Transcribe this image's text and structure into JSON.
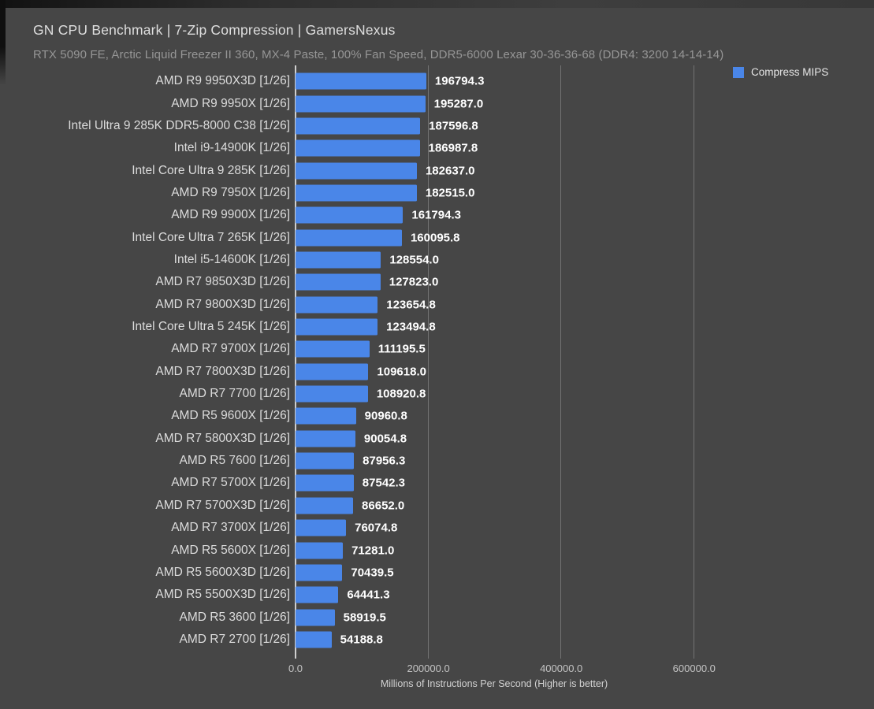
{
  "header": {
    "title": "GN CPU Benchmark | 7-Zip Compression | GamersNexus",
    "subtitle": "RTX 5090 FE, Arctic Liquid Freezer II 360, MX-4 Paste, 100% Fan Speed, DDR5-6000 Lexar 30-36-36-68 (DDR4: 3200 14-14-14)"
  },
  "legend": {
    "label": "Compress MIPS",
    "color": "#4a86e8"
  },
  "chart_data": {
    "type": "bar",
    "orientation": "horizontal",
    "title": "GN CPU Benchmark | 7-Zip Compression | GamersNexus",
    "subtitle": "RTX 5090 FE, Arctic Liquid Freezer II 360, MX-4 Paste, 100% Fan Speed, DDR5-6000 Lexar 30-36-36-68 (DDR4: 3200 14-14-14)",
    "xlabel": "Millions of Instructions Per Second (Higher is better)",
    "ylabel": "",
    "xlim": [
      0,
      870000
    ],
    "x_ticks": [
      0,
      200000,
      400000,
      600000
    ],
    "x_tick_labels": [
      "0.0",
      "200000.0",
      "400000.0",
      "600000.0"
    ],
    "grid": "vertical",
    "legend_position": "top-right",
    "bar_color": "#4a86e8",
    "series_name": "Compress MIPS",
    "categories": [
      "AMD R9 9950X3D [1/26]",
      "AMD R9 9950X [1/26]",
      "Intel Ultra 9 285K DDR5-8000 C38 [1/26]",
      "Intel i9-14900K [1/26]",
      "Intel Core Ultra 9 285K [1/26]",
      "AMD R9 7950X [1/26]",
      "AMD R9 9900X [1/26]",
      "Intel Core Ultra 7 265K [1/26]",
      "Intel i5-14600K [1/26]",
      "AMD R7 9850X3D [1/26]",
      "AMD R7 9800X3D [1/26]",
      "Intel Core Ultra 5 245K [1/26]",
      "AMD R7 9700X [1/26]",
      "AMD R7 7800X3D [1/26]",
      "AMD R7 7700 [1/26]",
      "AMD R5 9600X [1/26]",
      "AMD R7 5800X3D [1/26]",
      "AMD R5 7600 [1/26]",
      "AMD R7 5700X [1/26]",
      "AMD R7 5700X3D [1/26]",
      "AMD R7 3700X [1/26]",
      "AMD R5 5600X [1/26]",
      "AMD R5 5600X3D [1/26]",
      "AMD R5 5500X3D [1/26]",
      "AMD R5 3600 [1/26]",
      "AMD R7 2700 [1/26]"
    ],
    "values": [
      196794.3,
      195287.0,
      187596.8,
      186987.8,
      182637.0,
      182515.0,
      161794.3,
      160095.8,
      128554.0,
      127823.0,
      123654.8,
      123494.8,
      111195.5,
      109618.0,
      108920.8,
      90960.8,
      90054.8,
      87956.3,
      87542.3,
      86652.0,
      76074.8,
      71281.0,
      70439.5,
      64441.3,
      58919.5,
      54188.8
    ]
  }
}
